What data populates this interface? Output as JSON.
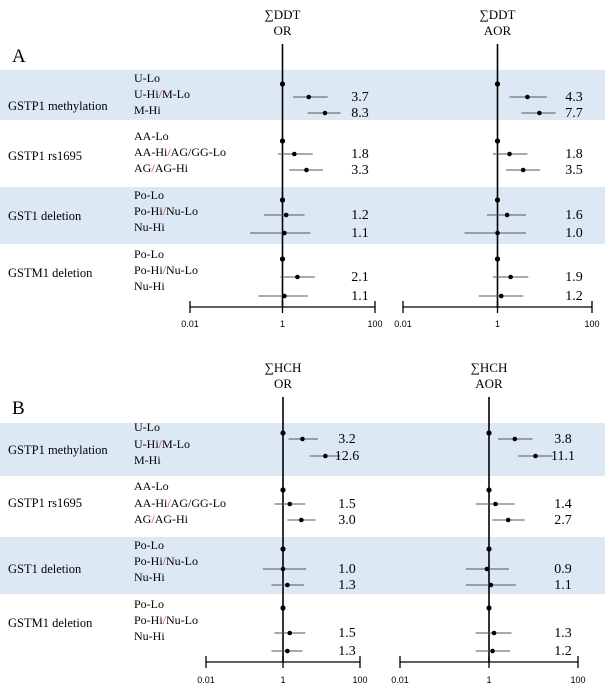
{
  "colors": {
    "band": "#dce8f4",
    "slash": "#d62728",
    "ink": "#000000",
    "ci": "#555555"
  },
  "chart_data": [
    {
      "type": "forest",
      "panel_label": "A",
      "x_scale": "log",
      "xlim": [
        0.01,
        100
      ],
      "x_ticks": [
        "0.01",
        "1",
        "100"
      ],
      "reference_line": 1,
      "plots": [
        {
          "header_top": "∑DDT",
          "header_bottom": "OR",
          "groups": [
            {
              "label": "GSTP1 methylation",
              "shaded": true,
              "subs": [
                "U-Lo",
                "U-Hi/M-Lo",
                "M-Hi"
              ],
              "estimates": [
                {
                  "value": 1.0,
                  "low": 1.0,
                  "high": 1.0,
                  "label": ""
                },
                {
                  "value": 3.7,
                  "low": 1.7,
                  "high": 9.5,
                  "label": "3.7"
                },
                {
                  "value": 8.3,
                  "low": 3.5,
                  "high": 18.0,
                  "label": "8.3"
                }
              ]
            },
            {
              "label": "GSTP1 rs1695",
              "shaded": false,
              "subs": [
                "AA-Lo",
                "AA-Hi/AG/GG-Lo",
                "AG/AG-Hi"
              ],
              "estimates": [
                {
                  "value": 1.0,
                  "low": 1.0,
                  "high": 1.0,
                  "label": ""
                },
                {
                  "value": 1.8,
                  "low": 0.8,
                  "high": 4.5,
                  "label": "1.8"
                },
                {
                  "value": 3.3,
                  "low": 1.4,
                  "high": 7.5,
                  "label": "3.3"
                }
              ]
            },
            {
              "label": "GST1 deletion",
              "shaded": true,
              "subs": [
                "Po-Lo",
                "Po-Hi/Nu-Lo",
                "Nu-Hi"
              ],
              "estimates": [
                {
                  "value": 1.0,
                  "low": 1.0,
                  "high": 1.0,
                  "label": ""
                },
                {
                  "value": 1.2,
                  "low": 0.4,
                  "high": 3.0,
                  "label": "1.2"
                },
                {
                  "value": 1.1,
                  "low": 0.2,
                  "high": 4.0,
                  "label": "1.1"
                }
              ]
            },
            {
              "label": "GSTM1 deletion",
              "shaded": false,
              "subs": [
                "Po-Lo",
                "Po-Hi/Nu-Lo",
                "Nu-Hi"
              ],
              "estimates": [
                {
                  "value": 1.0,
                  "low": 1.0,
                  "high": 1.0,
                  "label": ""
                },
                {
                  "value": 2.1,
                  "low": 0.9,
                  "high": 5.0,
                  "label": "2.1"
                },
                {
                  "value": 1.1,
                  "low": 0.3,
                  "high": 3.5,
                  "label": "1.1"
                }
              ]
            }
          ]
        },
        {
          "header_top": "∑DDT",
          "header_bottom": "AOR",
          "groups": [
            {
              "label": "GSTP1 methylation",
              "shaded": true,
              "subs": [
                "U-Lo",
                "U-Hi/M-Lo",
                "M-Hi"
              ],
              "estimates": [
                {
                  "value": 1.0,
                  "low": 1.0,
                  "high": 1.0,
                  "label": ""
                },
                {
                  "value": 4.3,
                  "low": 1.8,
                  "high": 11.0,
                  "label": "4.3"
                },
                {
                  "value": 7.7,
                  "low": 3.2,
                  "high": 17.0,
                  "label": "7.7"
                }
              ]
            },
            {
              "label": "GSTP1 rs1695",
              "shaded": false,
              "subs": [
                "AA-Lo",
                "AA-Hi/AG/GG-Lo",
                "AG/AG-Hi"
              ],
              "estimates": [
                {
                  "value": 1.0,
                  "low": 1.0,
                  "high": 1.0,
                  "label": ""
                },
                {
                  "value": 1.8,
                  "low": 0.8,
                  "high": 4.3,
                  "label": "1.8"
                },
                {
                  "value": 3.5,
                  "low": 1.5,
                  "high": 8.0,
                  "label": "3.5"
                }
              ]
            },
            {
              "label": "GST1 deletion",
              "shaded": true,
              "subs": [
                "Po-Lo",
                "Po-Hi/Nu-Lo",
                "Nu-Hi"
              ],
              "estimates": [
                {
                  "value": 1.0,
                  "low": 1.0,
                  "high": 1.0,
                  "label": ""
                },
                {
                  "value": 1.6,
                  "low": 0.6,
                  "high": 4.0,
                  "label": "1.6"
                },
                {
                  "value": 1.0,
                  "low": 0.2,
                  "high": 4.0,
                  "label": "1.0"
                }
              ]
            },
            {
              "label": "GSTM1 deletion",
              "shaded": false,
              "subs": [
                "Po-Lo",
                "Po-Hi/Nu-Lo",
                "Nu-Hi"
              ],
              "estimates": [
                {
                  "value": 1.0,
                  "low": 1.0,
                  "high": 1.0,
                  "label": ""
                },
                {
                  "value": 1.9,
                  "low": 0.8,
                  "high": 4.5,
                  "label": "1.9"
                },
                {
                  "value": 1.2,
                  "low": 0.4,
                  "high": 3.5,
                  "label": "1.2"
                }
              ]
            }
          ]
        }
      ]
    },
    {
      "type": "forest",
      "panel_label": "B",
      "x_scale": "log",
      "xlim": [
        0.01,
        100
      ],
      "x_ticks": [
        "0.01",
        "1",
        "100"
      ],
      "reference_line": 1,
      "plots": [
        {
          "header_top": "∑HCH",
          "header_bottom": "OR",
          "groups": [
            {
              "label": "GSTP1 methylation",
              "shaded": true,
              "subs": [
                "U-Lo",
                "U-Hi/M-Lo",
                "M-Hi"
              ],
              "estimates": [
                {
                  "value": 1.0,
                  "low": 1.0,
                  "high": 1.0,
                  "label": ""
                },
                {
                  "value": 3.2,
                  "low": 1.4,
                  "high": 8.0,
                  "label": "3.2"
                },
                {
                  "value": 12.6,
                  "low": 5.0,
                  "high": 30.0,
                  "label": "12.6"
                }
              ]
            },
            {
              "label": "GSTP1 rs1695",
              "shaded": false,
              "subs": [
                "AA-Lo",
                "AA-Hi/AG/GG-Lo",
                "AG/AG-Hi"
              ],
              "estimates": [
                {
                  "value": 1.0,
                  "low": 1.0,
                  "high": 1.0,
                  "label": ""
                },
                {
                  "value": 1.5,
                  "low": 0.6,
                  "high": 3.8,
                  "label": "1.5"
                },
                {
                  "value": 3.0,
                  "low": 1.3,
                  "high": 7.0,
                  "label": "3.0"
                }
              ]
            },
            {
              "label": "GST1 deletion",
              "shaded": true,
              "subs": [
                "Po-Lo",
                "Po-Hi/Nu-Lo",
                "Nu-Hi"
              ],
              "estimates": [
                {
                  "value": 1.0,
                  "low": 1.0,
                  "high": 1.0,
                  "label": ""
                },
                {
                  "value": 1.0,
                  "low": 0.3,
                  "high": 4.0,
                  "label": "1.0"
                },
                {
                  "value": 1.3,
                  "low": 0.5,
                  "high": 3.5,
                  "label": "1.3"
                }
              ]
            },
            {
              "label": "GSTM1 deletion",
              "shaded": false,
              "subs": [
                "Po-Lo",
                "Po-Hi/Nu-Lo",
                "Nu-Hi"
              ],
              "estimates": [
                {
                  "value": 1.0,
                  "low": 1.0,
                  "high": 1.0,
                  "label": ""
                },
                {
                  "value": 1.5,
                  "low": 0.6,
                  "high": 3.8,
                  "label": "1.5"
                },
                {
                  "value": 1.3,
                  "low": 0.5,
                  "high": 3.2,
                  "label": "1.3"
                }
              ]
            }
          ]
        },
        {
          "header_top": "∑HCH",
          "header_bottom": "AOR",
          "groups": [
            {
              "label": "GSTP1 methylation",
              "shaded": true,
              "subs": [
                "U-Lo",
                "U-Hi/M-Lo",
                "M-Hi"
              ],
              "estimates": [
                {
                  "value": 1.0,
                  "low": 1.0,
                  "high": 1.0,
                  "label": ""
                },
                {
                  "value": 3.8,
                  "low": 1.6,
                  "high": 9.5,
                  "label": "3.8"
                },
                {
                  "value": 11.1,
                  "low": 4.5,
                  "high": 27.0,
                  "label": "11.1"
                }
              ]
            },
            {
              "label": "GSTP1 rs1695",
              "shaded": false,
              "subs": [
                "AA-Lo",
                "AA-Hi/AG/GG-Lo",
                "AG/AG-Hi"
              ],
              "estimates": [
                {
                  "value": 1.0,
                  "low": 1.0,
                  "high": 1.0,
                  "label": ""
                },
                {
                  "value": 1.4,
                  "low": 0.5,
                  "high": 3.8,
                  "label": "1.4"
                },
                {
                  "value": 2.7,
                  "low": 1.2,
                  "high": 6.3,
                  "label": "2.7"
                }
              ]
            },
            {
              "label": "GST1 deletion",
              "shaded": true,
              "subs": [
                "Po-Lo",
                "Po-Hi/Nu-Lo",
                "Nu-Hi"
              ],
              "estimates": [
                {
                  "value": 1.0,
                  "low": 1.0,
                  "high": 1.0,
                  "label": ""
                },
                {
                  "value": 0.9,
                  "low": 0.3,
                  "high": 2.8,
                  "label": "0.9"
                },
                {
                  "value": 1.1,
                  "low": 0.3,
                  "high": 4.0,
                  "label": "1.1"
                }
              ]
            },
            {
              "label": "GSTM1 deletion",
              "shaded": false,
              "subs": [
                "Po-Lo",
                "Po-Hi/Nu-Lo",
                "Nu-Hi"
              ],
              "estimates": [
                {
                  "value": 1.0,
                  "low": 1.0,
                  "high": 1.0,
                  "label": ""
                },
                {
                  "value": 1.3,
                  "low": 0.5,
                  "high": 3.2,
                  "label": "1.3"
                },
                {
                  "value": 1.2,
                  "low": 0.5,
                  "high": 3.0,
                  "label": "1.2"
                }
              ]
            }
          ]
        }
      ]
    }
  ]
}
